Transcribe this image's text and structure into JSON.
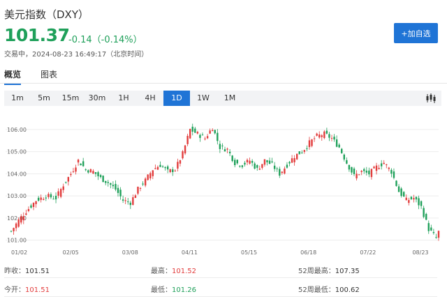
{
  "header": {
    "title": "美元指数（DXY）",
    "price": "101.37",
    "change": "-0.14（-0.14%）",
    "status": "交易中，2024-08-23 16:49:17（北京时间）",
    "watch_button": "+加自选"
  },
  "tabs": [
    {
      "label": "概览",
      "active": true
    },
    {
      "label": "图表",
      "active": false
    }
  ],
  "periods": [
    {
      "label": "1m",
      "active": false
    },
    {
      "label": "5m",
      "active": false
    },
    {
      "label": "15m",
      "active": false
    },
    {
      "label": "30m",
      "active": false
    },
    {
      "label": "1H",
      "active": false
    },
    {
      "label": "4H",
      "active": false
    },
    {
      "label": "1D",
      "active": true
    },
    {
      "label": "1W",
      "active": false
    },
    {
      "label": "1M",
      "active": false
    }
  ],
  "icons": {
    "chart_type": "candlestick-chart-icon"
  },
  "colors": {
    "up": "#e23c3c",
    "down": "#1fa05a",
    "accent": "#1f74d6"
  },
  "chart_data": {
    "type": "candlestick",
    "y_ticks": [
      "106.00",
      "105.00",
      "104.00",
      "103.00",
      "102.00",
      "101.00"
    ],
    "y_tick_values": [
      106,
      105,
      104,
      103,
      102,
      101
    ],
    "x_ticks": [
      "01/02",
      "02/05",
      "03/08",
      "04/11",
      "05/15",
      "06/18",
      "07/22",
      "08/23"
    ],
    "ylim": [
      100.8,
      106.5
    ],
    "grid": true,
    "close_anchors": [
      [
        0,
        101.4
      ],
      [
        3,
        101.9
      ],
      [
        6,
        102.3
      ],
      [
        10,
        102.8
      ],
      [
        14,
        103.0
      ],
      [
        18,
        102.9
      ],
      [
        21,
        103.5
      ],
      [
        24,
        104.0
      ],
      [
        27,
        104.6
      ],
      [
        30,
        104.2
      ],
      [
        33,
        104.1
      ],
      [
        36,
        103.8
      ],
      [
        39,
        103.6
      ],
      [
        42,
        103.3
      ],
      [
        45,
        102.8
      ],
      [
        48,
        102.7
      ],
      [
        51,
        103.3
      ],
      [
        54,
        103.7
      ],
      [
        57,
        104.2
      ],
      [
        60,
        104.4
      ],
      [
        63,
        104.1
      ],
      [
        66,
        104.2
      ],
      [
        69,
        104.9
      ],
      [
        72,
        106.0
      ],
      [
        75,
        105.8
      ],
      [
        78,
        105.6
      ],
      [
        81,
        106.1
      ],
      [
        84,
        105.2
      ],
      [
        87,
        105.1
      ],
      [
        90,
        104.5
      ],
      [
        93,
        104.4
      ],
      [
        96,
        104.6
      ],
      [
        99,
        104.2
      ],
      [
        102,
        104.6
      ],
      [
        105,
        104.4
      ],
      [
        108,
        104.0
      ],
      [
        111,
        104.4
      ],
      [
        114,
        104.8
      ],
      [
        117,
        105.0
      ],
      [
        120,
        105.4
      ],
      [
        123,
        105.7
      ],
      [
        126,
        105.8
      ],
      [
        129,
        105.6
      ],
      [
        132,
        105.2
      ],
      [
        135,
        104.5
      ],
      [
        138,
        103.9
      ],
      [
        141,
        104.1
      ],
      [
        144,
        104.0
      ],
      [
        147,
        104.3
      ],
      [
        150,
        104.5
      ],
      [
        153,
        104.1
      ],
      [
        156,
        103.2
      ],
      [
        159,
        102.8
      ],
      [
        162,
        102.9
      ],
      [
        165,
        102.5
      ],
      [
        168,
        101.5
      ],
      [
        171,
        101.1
      ],
      [
        172,
        101.37
      ]
    ]
  },
  "stats": [
    [
      {
        "label": "昨收：",
        "value": "101.51",
        "tone": "neutral"
      },
      {
        "label": "最高：",
        "value": "101.52",
        "tone": "up"
      },
      {
        "label": "52周最高：",
        "value": "107.35",
        "tone": "neutral"
      }
    ],
    [
      {
        "label": "今开：",
        "value": "101.51",
        "tone": "up"
      },
      {
        "label": "最低：",
        "value": "101.26",
        "tone": "down"
      },
      {
        "label": "52周最低：",
        "value": "100.62",
        "tone": "neutral"
      }
    ]
  ]
}
